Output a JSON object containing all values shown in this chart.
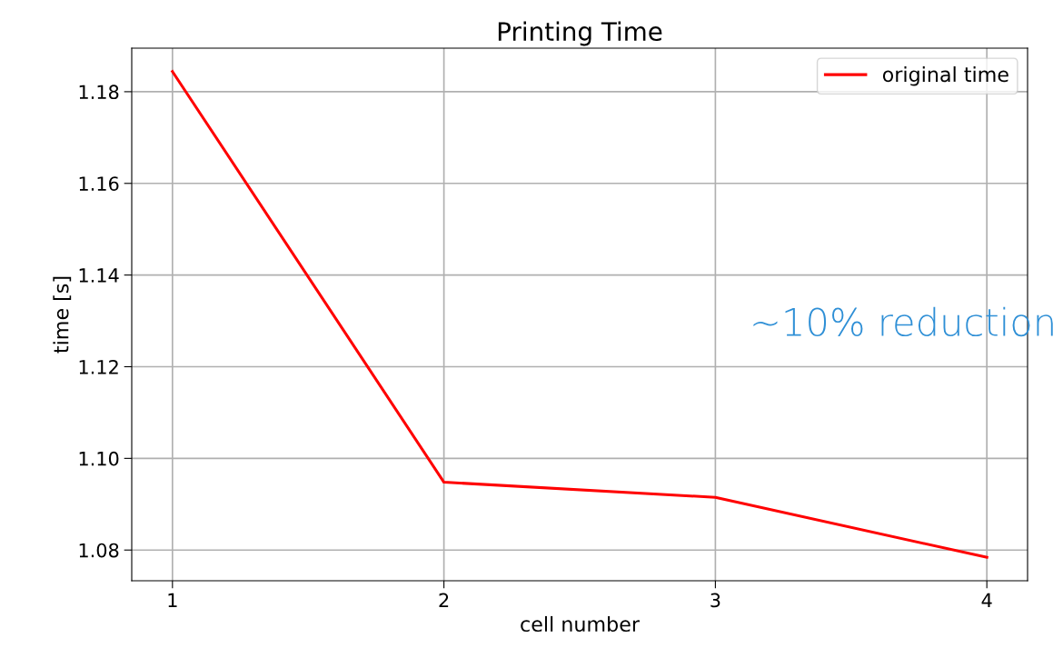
{
  "chart_data": {
    "type": "line",
    "title": "Printing Time",
    "xlabel": "cell number",
    "ylabel": "time [s]",
    "x": [
      1,
      2,
      3,
      4
    ],
    "series": [
      {
        "name": "original time",
        "color": "#ff0000",
        "values": [
          1.1844,
          1.0948,
          1.0915,
          1.0784
        ]
      }
    ],
    "xlim": [
      0.85,
      4.15
    ],
    "xticks": [
      1,
      2,
      3,
      4
    ],
    "ylim": [
      1.0733,
      1.1895
    ],
    "yticks": [
      {
        "value": 1.08,
        "label": "1.08"
      },
      {
        "value": 1.1,
        "label": "1.10"
      },
      {
        "value": 1.12,
        "label": "1.12"
      },
      {
        "value": 1.14,
        "label": "1.14"
      },
      {
        "value": 1.16,
        "label": "1.16"
      },
      {
        "value": 1.18,
        "label": "1.18"
      }
    ],
    "grid": true,
    "legend": "top right",
    "marker": "none",
    "line_style": "solid",
    "annotations": [
      "~10% reduction"
    ]
  }
}
